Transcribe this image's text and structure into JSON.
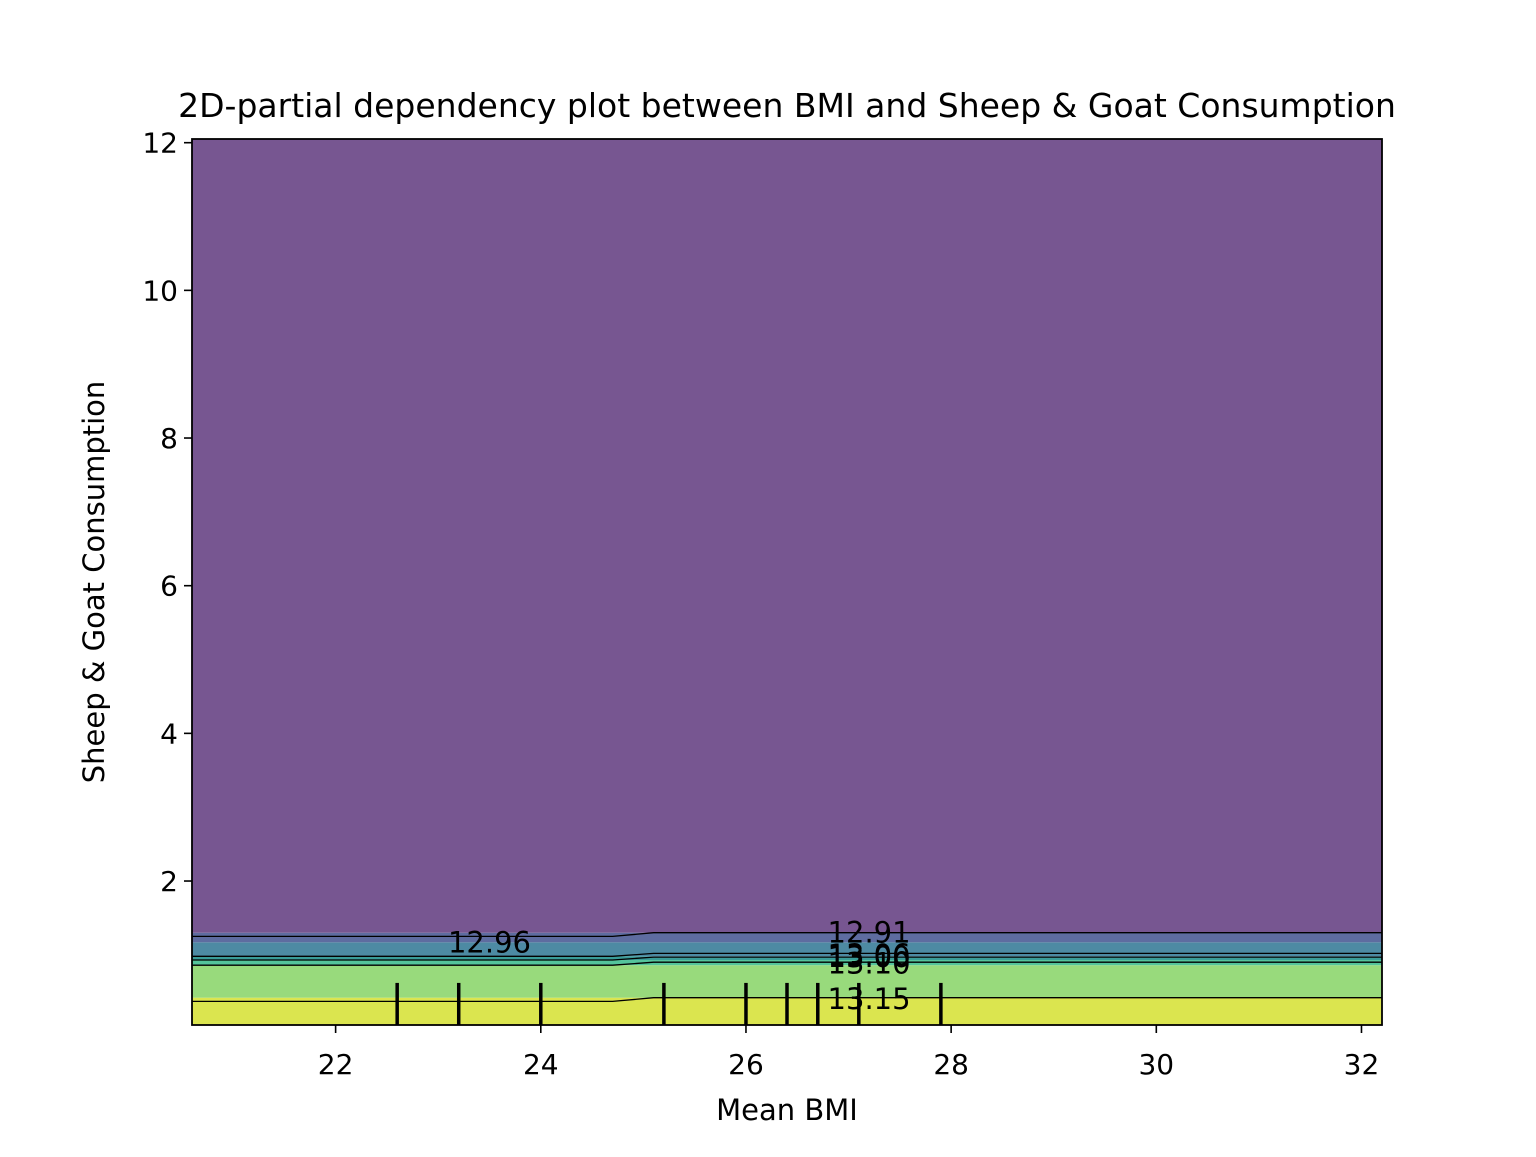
{
  "chart_data": {
    "type": "heatmap",
    "subtype": "filled contour with contour lines and rug marks",
    "title": "2D-partial dependency plot between BMI and Sheep & Goat Consumption",
    "xlabel": "Mean BMI",
    "ylabel": "Sheep & Goat Consumption",
    "xlim": [
      20.6,
      32.2
    ],
    "ylim": [
      0.05,
      12.05
    ],
    "xticks": [
      22,
      24,
      26,
      28,
      30,
      32
    ],
    "yticks": [
      2,
      4,
      6,
      8,
      10,
      12
    ],
    "colormap": "viridis",
    "alpha": 0.75,
    "grid": false,
    "bands": [
      {
        "from": 0.05,
        "to": 0.42,
        "color": "#dbe54f"
      },
      {
        "from": 0.42,
        "to": 0.86,
        "color": "#98da7c"
      },
      {
        "from": 0.86,
        "to": 0.93,
        "color": "#54c49b"
      },
      {
        "from": 0.93,
        "to": 0.98,
        "color": "#3a9c98"
      },
      {
        "from": 0.98,
        "to": 1.17,
        "color": "#4d8aa3"
      },
      {
        "from": 1.17,
        "to": 1.3,
        "color": "#5e6ca0"
      },
      {
        "from": 1.3,
        "to": 12.05,
        "color": "#775691"
      }
    ],
    "contour_lines": [
      {
        "x": [
          20.6,
          24.7,
          25.1,
          32.2
        ],
        "y": [
          1.25,
          1.25,
          1.3,
          1.3
        ]
      },
      {
        "x": [
          20.6,
          24.7,
          25.1,
          32.2
        ],
        "y": [
          0.98,
          0.98,
          1.02,
          1.02
        ]
      },
      {
        "x": [
          20.6,
          24.7,
          25.1,
          32.2
        ],
        "y": [
          0.93,
          0.93,
          0.97,
          0.97
        ]
      },
      {
        "x": [
          20.6,
          24.7,
          25.1,
          32.2
        ],
        "y": [
          0.86,
          0.86,
          0.9,
          0.9
        ]
      },
      {
        "x": [
          20.6,
          24.7,
          25.1,
          32.2
        ],
        "y": [
          0.37,
          0.37,
          0.42,
          0.42
        ]
      }
    ],
    "contour_labels": [
      {
        "text": "12.96",
        "x": 23.5,
        "y": 1.17
      },
      {
        "text": "12.91",
        "x": 27.2,
        "y": 1.3
      },
      {
        "text": "13.06",
        "x": 27.2,
        "y": 1.0
      },
      {
        "text": "13.00",
        "x": 27.2,
        "y": 0.97
      },
      {
        "text": "13.10",
        "x": 27.2,
        "y": 0.88
      },
      {
        "text": "13.15",
        "x": 27.2,
        "y": 0.4
      }
    ],
    "rug_x": [
      22.6,
      23.2,
      24.0,
      25.2,
      26.0,
      26.4,
      26.7,
      27.1,
      27.9
    ],
    "rug_height": 0.57
  }
}
